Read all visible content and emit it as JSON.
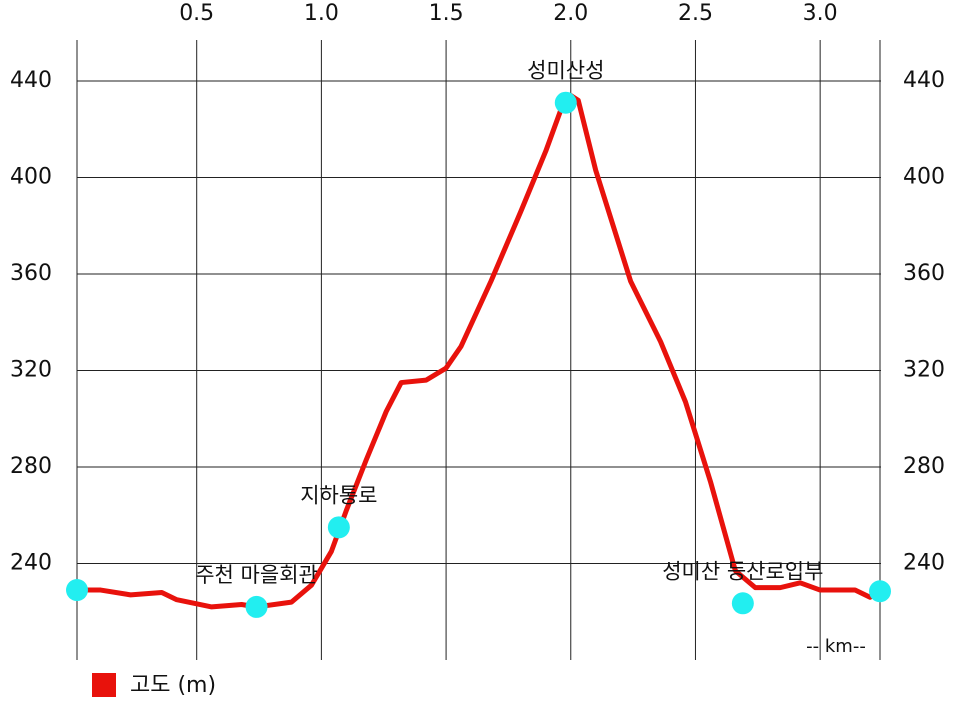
{
  "chart_data": {
    "type": "line",
    "x_label": "-- km--",
    "x": [
      0.02,
      0.115,
      0.235,
      0.36,
      0.42,
      0.56,
      0.68,
      0.74,
      0.88,
      0.96,
      1.04,
      1.1,
      1.18,
      1.26,
      1.32,
      1.42,
      1.5,
      1.56,
      1.68,
      1.8,
      1.9,
      1.96,
      2.0,
      2.03,
      2.1,
      2.24,
      2.36,
      2.46,
      2.56,
      2.66,
      2.74,
      2.84,
      2.92,
      3.0,
      3.14,
      3.2,
      3.24
    ],
    "series": [
      {
        "name": "고도 (m)",
        "color": "#e8120c",
        "values": [
          229,
          229,
          227,
          228,
          225,
          222,
          223,
          222,
          224,
          231,
          245,
          262,
          283,
          303,
          315,
          316,
          321,
          330,
          357,
          386,
          411,
          428,
          434,
          432,
          403,
          357,
          332,
          307,
          274,
          237,
          230,
          230,
          232,
          229,
          229,
          226,
          228
        ]
      }
    ],
    "markers": {
      "color": "#22eef0",
      "x": [
        0.02,
        0.74,
        1.07,
        1.98,
        2.69,
        3.24
      ],
      "values": [
        229,
        222,
        255,
        431,
        223.5,
        228.5
      ],
      "labels": [
        null,
        "주천 마을회관",
        "지하통로",
        "성미산성",
        "성미산 등산로입부",
        null
      ]
    },
    "xlim": [
      0.02,
      3.24
    ],
    "xticks": [
      0.5,
      {
        "value": 1,
        "label": "1.0"
      },
      1.5,
      {
        "value": 2,
        "label": "2.0"
      },
      2.5,
      {
        "value": 3,
        "label": "3.0"
      }
    ],
    "ylim": [
      200,
      457
    ],
    "yticks": [
      240,
      280,
      320,
      360,
      400,
      440
    ],
    "y2lim": [
      200,
      457
    ],
    "y2ticks": [
      240,
      280,
      320,
      360,
      400,
      440
    ],
    "grid": true
  }
}
